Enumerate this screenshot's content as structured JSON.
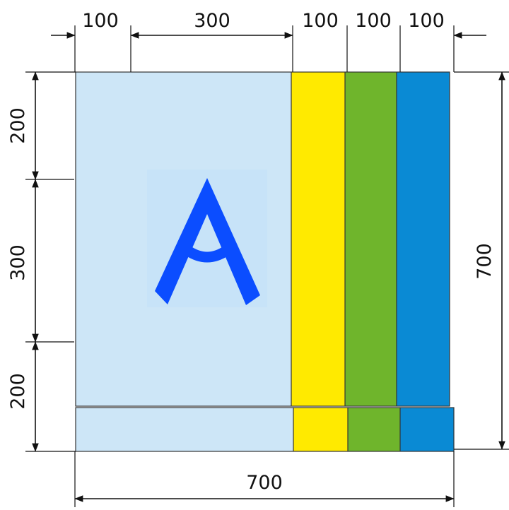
{
  "colors": {
    "background": "#ffffff",
    "light_blue": "#cde6f7",
    "yellow": "#ffea00",
    "green": "#6fb52c",
    "blue": "#0a8ad4",
    "letter": "#0b4dff",
    "dimension": "#111111"
  },
  "dimensions": {
    "top": [
      "100",
      "300",
      "100",
      "100",
      "100"
    ],
    "left": [
      "200",
      "300",
      "200"
    ],
    "right": "700",
    "bottom": "700"
  },
  "logo_letter": "A"
}
